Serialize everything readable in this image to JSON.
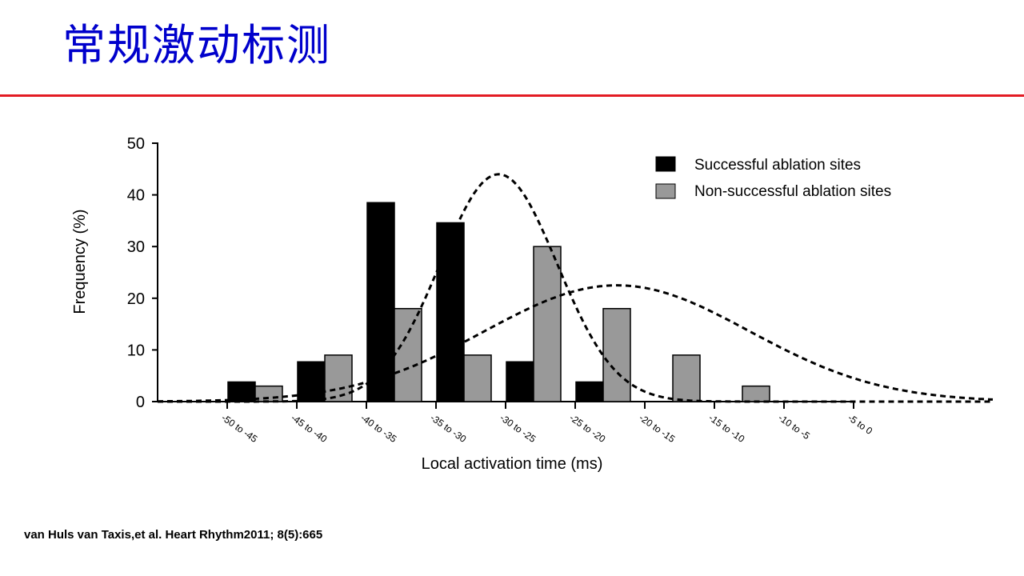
{
  "slide": {
    "title": "常规激动标测",
    "citation": "van Huls van Taxis,et al. Heart Rhythm2011; 8(5):665"
  },
  "colors": {
    "title": "#0000cc",
    "rule": "#e31b23",
    "successful": "#000000",
    "non_successful": "#999999"
  },
  "chart_data": {
    "type": "bar",
    "title": "",
    "xlabel": "Local activation time (ms)",
    "ylabel": "Frequency (%)",
    "ylim": [
      0,
      50
    ],
    "yticks": [
      0,
      10,
      20,
      30,
      40,
      50
    ],
    "categories": [
      "-50 to -45",
      "-45 to -40",
      "-40 to -35",
      "-35 to -30",
      "-30 to -25",
      "-25 to -20",
      "-20 to -15",
      "-15 to -10",
      "-10 to -5",
      "-5 to 0"
    ],
    "series": [
      {
        "name": "Successful ablation sites",
        "color": "#000000",
        "values": [
          0,
          3.8,
          7.7,
          38.5,
          34.6,
          7.7,
          3.8,
          0,
          0,
          0
        ]
      },
      {
        "name": "Non-successful ablation sites",
        "color": "#999999",
        "values": [
          0,
          3,
          9,
          18,
          9,
          30,
          18,
          9,
          3,
          0
        ]
      }
    ],
    "fitted_curves": [
      {
        "series": "Successful ablation sites",
        "style": "dashed",
        "mean_ms": -30.5,
        "peak": 44
      },
      {
        "series": "Non-successful ablation sites",
        "style": "dashed",
        "mean_ms": -22,
        "peak": 22.5
      }
    ],
    "grid": false,
    "legend_position": "top-right"
  }
}
